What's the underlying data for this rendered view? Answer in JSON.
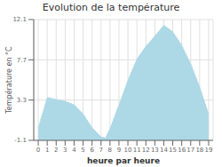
{
  "chart_data": {
    "type": "area",
    "title": "Evolution de la température",
    "x_label": "heure par heure",
    "y_label": "Température en °C",
    "x": [
      0,
      1,
      2,
      3,
      4,
      5,
      6,
      7,
      7.5,
      8,
      9,
      10,
      11,
      12,
      13,
      14,
      15,
      16,
      17,
      18,
      19
    ],
    "values": [
      0.3,
      3.6,
      3.4,
      3.2,
      2.8,
      1.8,
      0.3,
      -0.7,
      -0.8,
      0.2,
      2.8,
      5.5,
      7.8,
      9.2,
      10.3,
      11.5,
      10.8,
      9.3,
      7.3,
      4.8,
      1.8
    ],
    "xlim": [
      -0.5,
      19.5
    ],
    "ylim": [
      -1.1,
      12.1
    ],
    "xticks": [
      0,
      1,
      2,
      3,
      4,
      5,
      6,
      7,
      8,
      9,
      10,
      11,
      12,
      13,
      14,
      15,
      16,
      17,
      18,
      19
    ],
    "yticks": [
      -1.1,
      3.3,
      7.7,
      12.1
    ],
    "color": "#add8e6",
    "line_style": "dotted",
    "grid": true
  }
}
